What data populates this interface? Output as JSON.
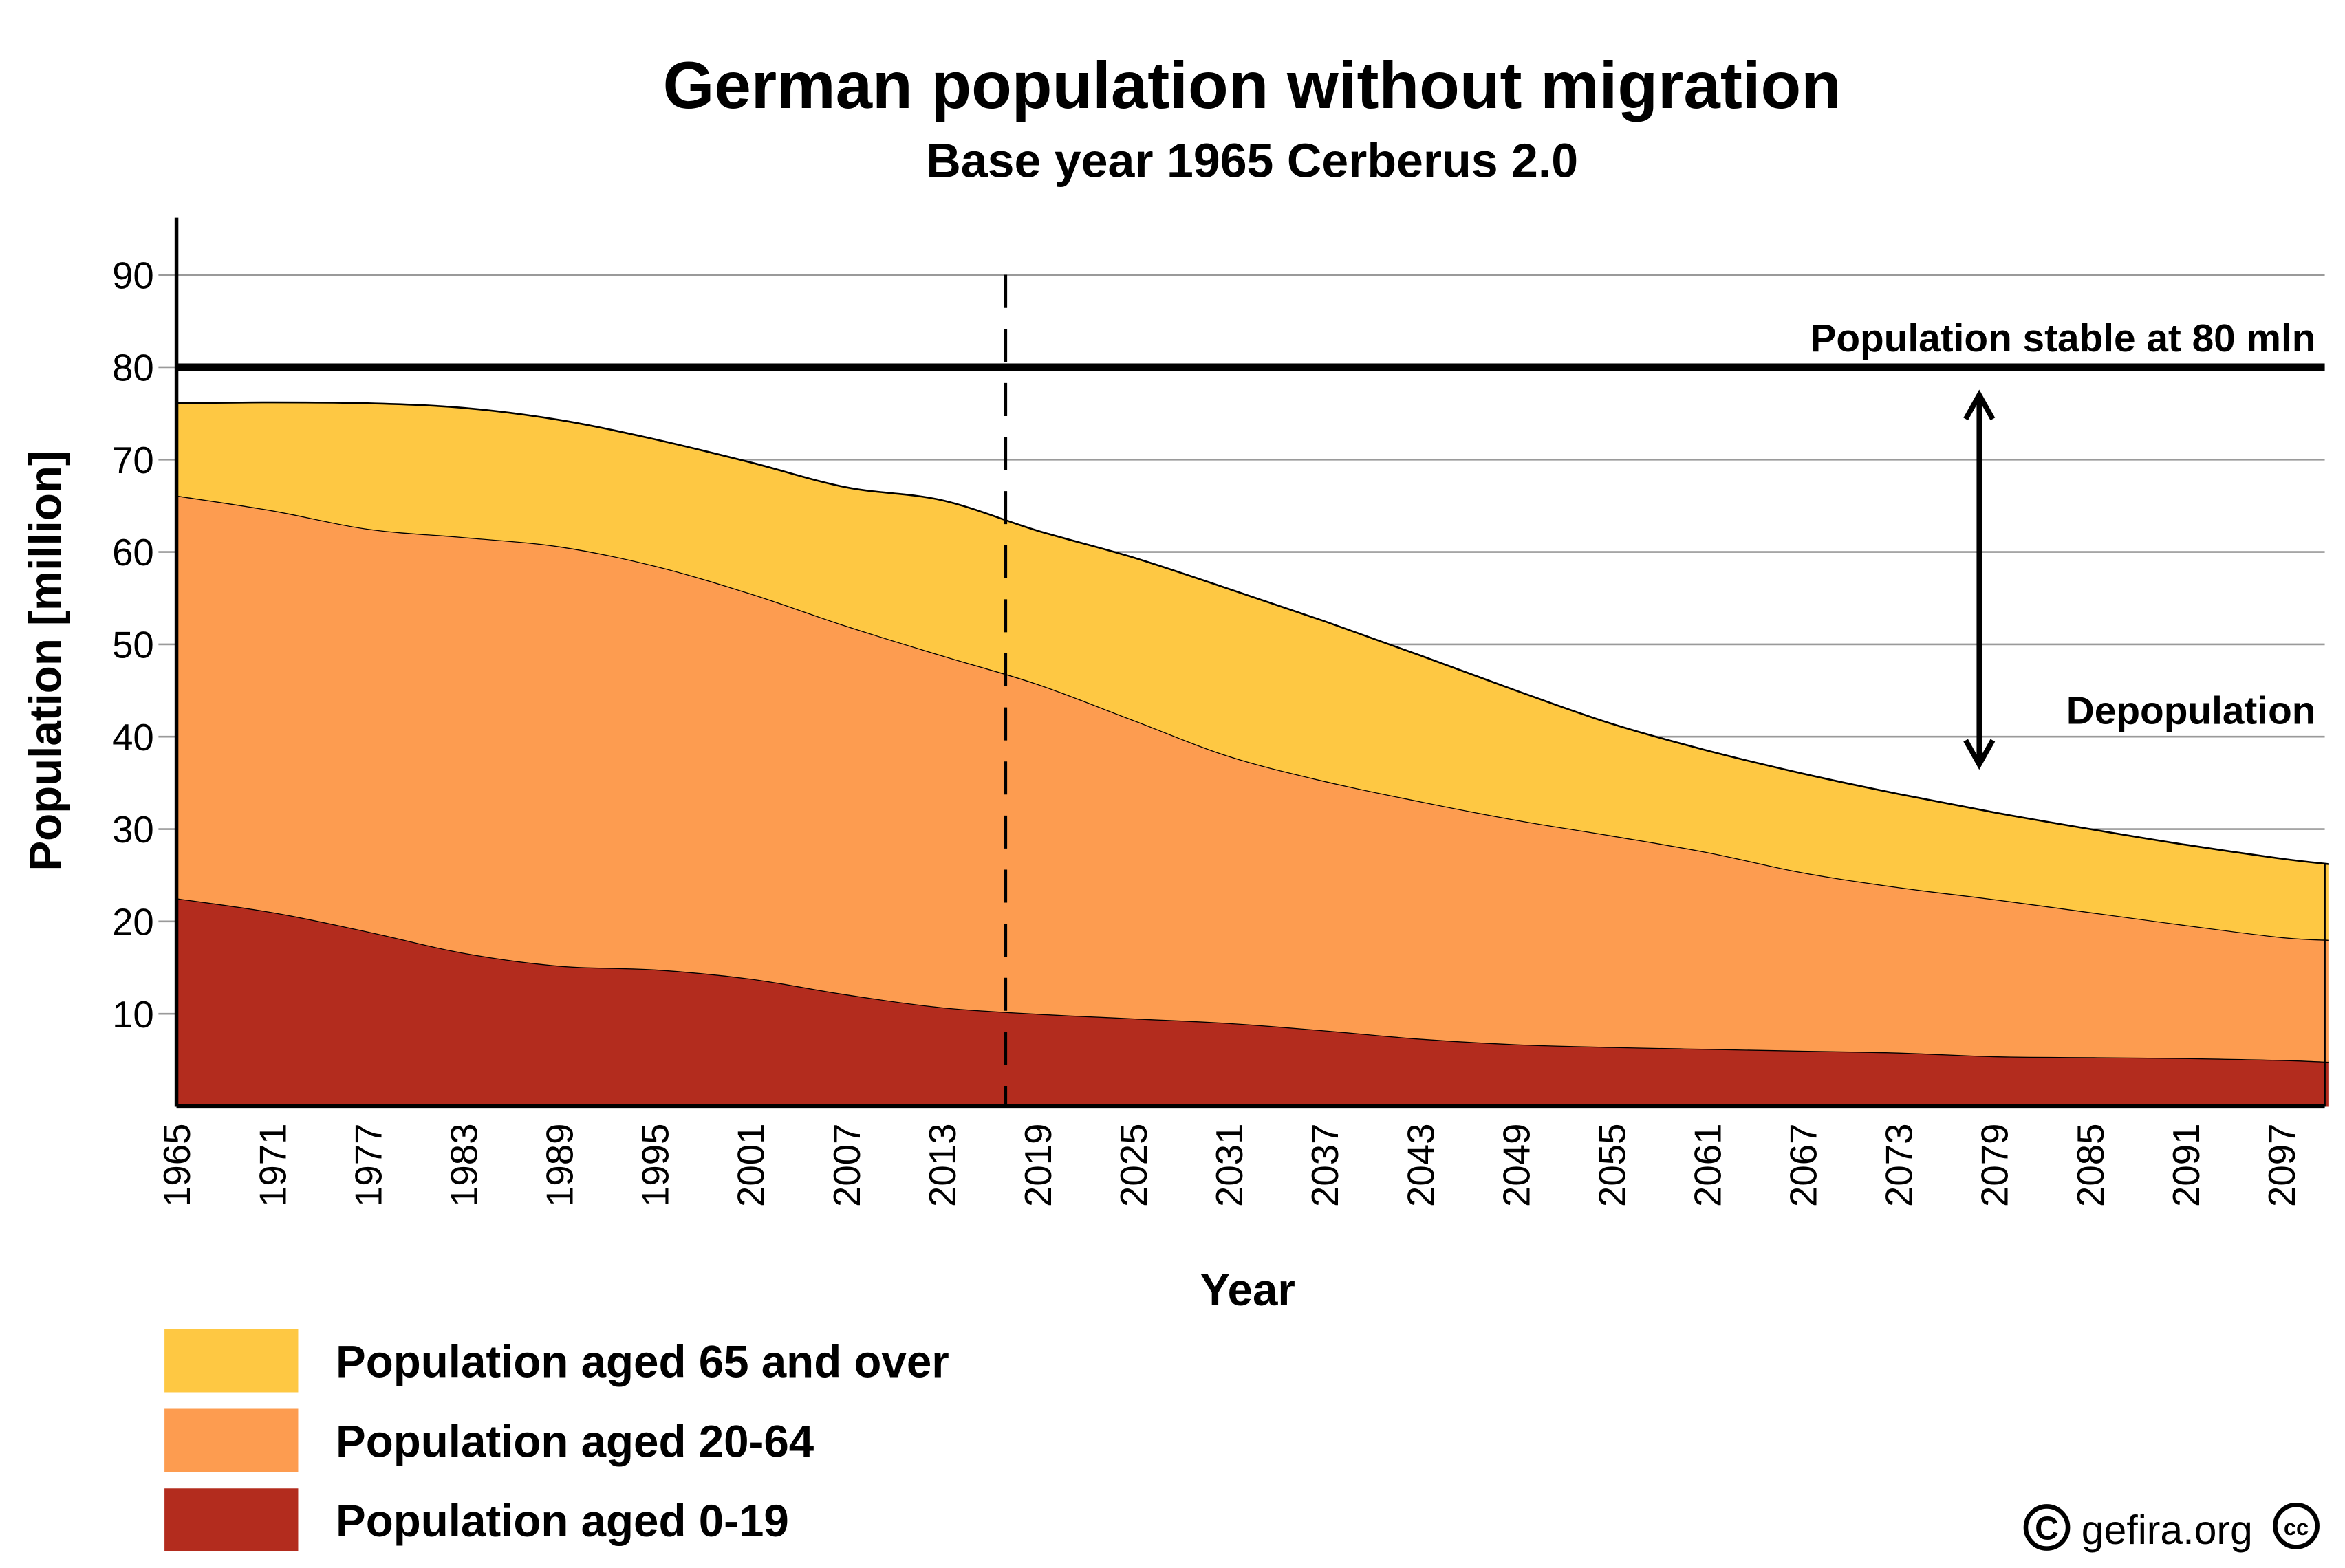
{
  "chart_data": {
    "type": "area",
    "stacked": true,
    "title": "German population without migration",
    "subtitle": "Base year 1965 Cerberus 2.0",
    "xlabel": "Year",
    "ylabel": "Population [million]",
    "xlim": [
      1965,
      2100
    ],
    "ylim": [
      0,
      96
    ],
    "grid": true,
    "x_ticks": [
      "1965",
      "1971",
      "1977",
      "1983",
      "1989",
      "1995",
      "2001",
      "2007",
      "2013",
      "2019",
      "2025",
      "2031",
      "2037",
      "2043",
      "2049",
      "2055",
      "2061",
      "2067",
      "2073",
      "2079",
      "2085",
      "2091",
      "2097"
    ],
    "y_ticks": [
      "10",
      "20",
      "30",
      "40",
      "50",
      "60",
      "70",
      "80",
      "90"
    ],
    "x": [
      1965,
      1971,
      1977,
      1983,
      1989,
      1995,
      2001,
      2007,
      2013,
      2019,
      2025,
      2031,
      2037,
      2043,
      2049,
      2055,
      2061,
      2067,
      2073,
      2079,
      2085,
      2091,
      2097,
      2100
    ],
    "series": [
      {
        "name": "Population aged 0-19",
        "color": "#b32c1e",
        "values": [
          22.5,
          21,
          18.9,
          16.6,
          15.2,
          14.8,
          13.8,
          12.1,
          10.7,
          10,
          9.5,
          9,
          8.2,
          7.3,
          6.7,
          6.4,
          6.2,
          6.0,
          5.8,
          5.4,
          5.3,
          5.2,
          5.0,
          4.8
        ]
      },
      {
        "name": "Population aged 20-64",
        "color": "#fd9c50",
        "values": [
          43.6,
          43.5,
          43.6,
          45,
          45.4,
          43.7,
          41.7,
          39.9,
          38.1,
          35.7,
          32.3,
          28.9,
          27,
          25.7,
          24.3,
          22.9,
          21.3,
          19.3,
          17.9,
          17,
          15.7,
          14.4,
          13.3,
          13.2
        ]
      },
      {
        "name": "Population aged 65 and over",
        "color": "#fec843",
        "values": [
          10,
          11.7,
          13.6,
          14,
          13.7,
          13.7,
          14.2,
          15,
          16.8,
          16.6,
          17.6,
          18.1,
          17.3,
          15.8,
          14,
          12.1,
          11,
          10.7,
          10.1,
          9.4,
          9,
          8.7,
          8.5,
          8.2
        ]
      }
    ],
    "legend_position": "bottom-left",
    "reference_line": {
      "value": 80,
      "label": "Population stable at 80 mln"
    },
    "divider_year": 2017,
    "arrow": {
      "from": 77,
      "to": 37,
      "label": "Depopulation"
    }
  },
  "credit": {
    "site": "gefira.org",
    "copyright_symbol": "©",
    "license_symbol": "cc"
  }
}
